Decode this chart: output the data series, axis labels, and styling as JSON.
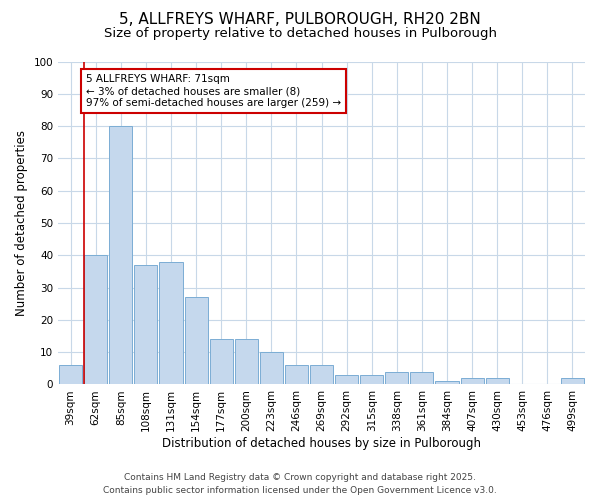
{
  "title_line1": "5, ALLFREYS WHARF, PULBOROUGH, RH20 2BN",
  "title_line2": "Size of property relative to detached houses in Pulborough",
  "xlabel": "Distribution of detached houses by size in Pulborough",
  "ylabel": "Number of detached properties",
  "categories": [
    "39sqm",
    "62sqm",
    "85sqm",
    "108sqm",
    "131sqm",
    "154sqm",
    "177sqm",
    "200sqm",
    "223sqm",
    "246sqm",
    "269sqm",
    "292sqm",
    "315sqm",
    "338sqm",
    "361sqm",
    "384sqm",
    "407sqm",
    "430sqm",
    "453sqm",
    "476sqm",
    "499sqm"
  ],
  "values": [
    6,
    40,
    80,
    37,
    38,
    27,
    14,
    14,
    10,
    6,
    6,
    3,
    3,
    4,
    4,
    1,
    2,
    2,
    0,
    0,
    2
  ],
  "bar_color": "#c5d8ed",
  "bar_edge_color": "#7badd4",
  "ylim": [
    0,
    100
  ],
  "yticks": [
    0,
    10,
    20,
    30,
    40,
    50,
    60,
    70,
    80,
    90,
    100
  ],
  "annotation_title": "5 ALLFREYS WHARF: 71sqm",
  "annotation_line1": "← 3% of detached houses are smaller (8)",
  "annotation_line2": "97% of semi-detached houses are larger (259) →",
  "annotation_box_color": "#ffffff",
  "annotation_border_color": "#cc0000",
  "red_line_color": "#cc0000",
  "fig_background_color": "#ffffff",
  "plot_background_color": "#ffffff",
  "grid_color": "#c8d8e8",
  "footer_line1": "Contains HM Land Registry data © Crown copyright and database right 2025.",
  "footer_line2": "Contains public sector information licensed under the Open Government Licence v3.0.",
  "title_fontsize": 11,
  "subtitle_fontsize": 9.5,
  "axis_label_fontsize": 8.5,
  "tick_fontsize": 7.5,
  "annotation_fontsize": 7.5,
  "footer_fontsize": 6.5
}
